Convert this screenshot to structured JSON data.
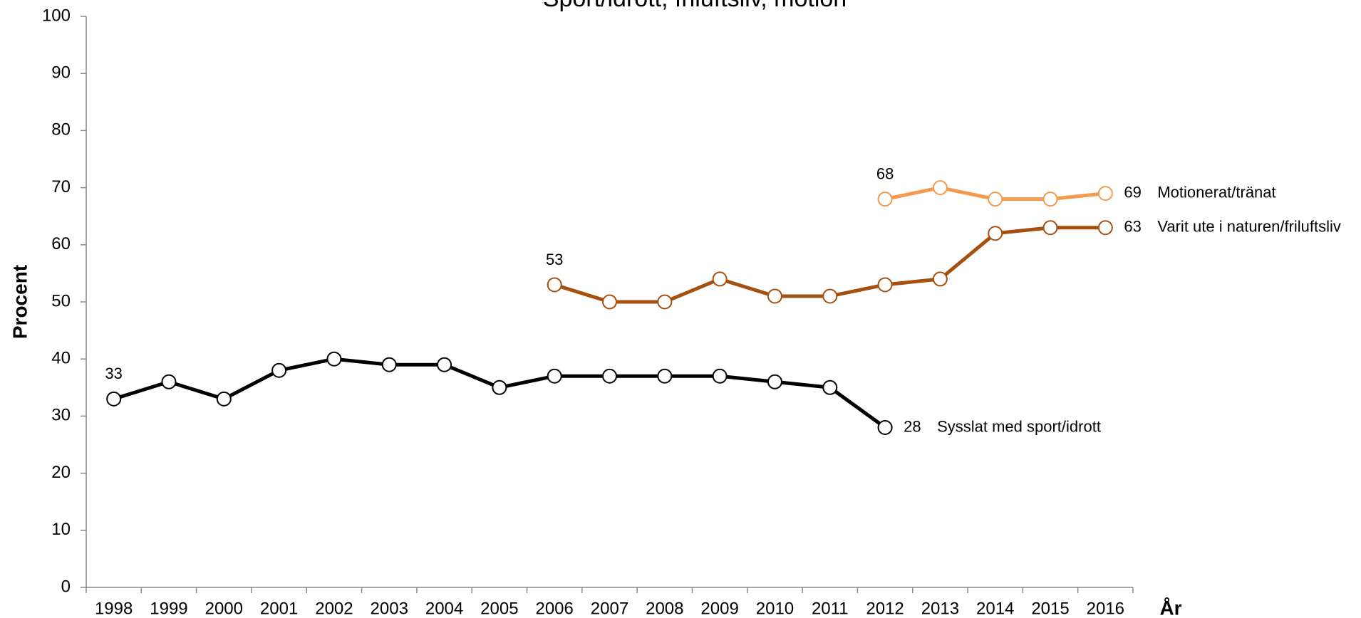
{
  "chart_data": {
    "type": "line",
    "title": "Sport/idrott, friluftsliv, motion",
    "x_label": "År",
    "y_label": "Procent",
    "categories": [
      "1998",
      "1999",
      "2000",
      "2001",
      "2002",
      "2003",
      "2004",
      "2005",
      "2006",
      "2007",
      "2008",
      "2009",
      "2010",
      "2011",
      "2012",
      "2013",
      "2014",
      "2015",
      "2016"
    ],
    "series": [
      {
        "name": "Sysslat med sport/idrott",
        "color": "#000000",
        "values": [
          33,
          36,
          33,
          38,
          40,
          39,
          39,
          35,
          37,
          37,
          37,
          37,
          36,
          35,
          28,
          null,
          null,
          null,
          null
        ]
      },
      {
        "name": "Varit ute i naturen/friluftsliv",
        "color": "#a5500f",
        "values": [
          null,
          null,
          null,
          null,
          null,
          null,
          null,
          null,
          53,
          50,
          50,
          54,
          51,
          51,
          53,
          54,
          62,
          63,
          63
        ]
      },
      {
        "name": "Motionerat/tränat",
        "color": "#f39a4f",
        "values": [
          null,
          null,
          null,
          null,
          null,
          null,
          null,
          null,
          null,
          null,
          null,
          null,
          null,
          null,
          68,
          70,
          68,
          68,
          69
        ]
      }
    ],
    "ylim": [
      0,
      100
    ],
    "yticks": [
      0,
      10,
      20,
      30,
      40,
      50,
      60,
      70,
      80,
      90,
      100
    ],
    "grid": false
  }
}
